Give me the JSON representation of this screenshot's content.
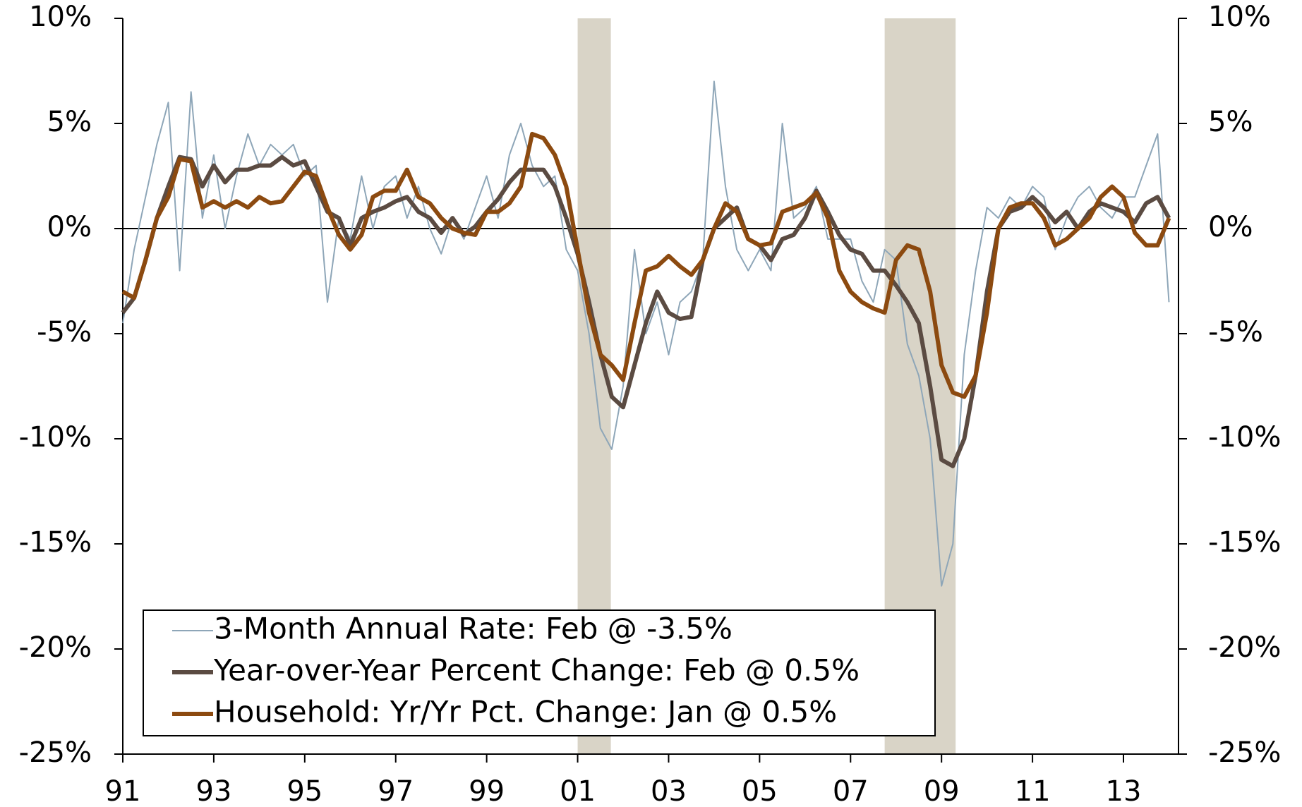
{
  "chart_data": {
    "type": "line",
    "x": [
      1991.0,
      1991.25,
      1991.5,
      1991.75,
      1992.0,
      1992.25,
      1992.5,
      1992.75,
      1993.0,
      1993.25,
      1993.5,
      1993.75,
      1994.0,
      1994.25,
      1994.5,
      1994.75,
      1995.0,
      1995.25,
      1995.5,
      1995.75,
      1996.0,
      1996.25,
      1996.5,
      1996.75,
      1997.0,
      1997.25,
      1997.5,
      1997.75,
      1998.0,
      1998.25,
      1998.5,
      1998.75,
      1999.0,
      1999.25,
      1999.5,
      1999.75,
      2000.0,
      2000.25,
      2000.5,
      2000.75,
      2001.0,
      2001.25,
      2001.5,
      2001.75,
      2002.0,
      2002.25,
      2002.5,
      2002.75,
      2003.0,
      2003.25,
      2003.5,
      2003.75,
      2004.0,
      2004.25,
      2004.5,
      2004.75,
      2005.0,
      2005.25,
      2005.5,
      2005.75,
      2006.0,
      2006.25,
      2006.5,
      2006.75,
      2007.0,
      2007.25,
      2007.5,
      2007.75,
      2008.0,
      2008.25,
      2008.5,
      2008.75,
      2009.0,
      2009.25,
      2009.5,
      2009.75,
      2010.0,
      2010.25,
      2010.5,
      2010.75,
      2011.0,
      2011.25,
      2011.5,
      2011.75,
      2012.0,
      2012.25,
      2012.5,
      2012.75,
      2013.0,
      2013.25,
      2013.5,
      2013.75,
      2014.0
    ],
    "series": [
      {
        "name": "3-Month Annual Rate: Feb @ -3.5%",
        "color": "#8ea6b8",
        "width": 2,
        "values": [
          -4.5,
          -1.0,
          1.5,
          4.0,
          6.0,
          -2.0,
          6.5,
          0.5,
          3.5,
          0.0,
          2.5,
          4.5,
          3.0,
          4.0,
          3.5,
          4.0,
          2.5,
          3.0,
          -3.5,
          0.5,
          -0.5,
          2.5,
          0.0,
          2.0,
          2.5,
          0.5,
          2.0,
          0.0,
          -1.2,
          0.5,
          -0.5,
          1.0,
          2.5,
          0.5,
          3.5,
          5.0,
          3.0,
          2.0,
          2.5,
          -1.0,
          -2.0,
          -5.0,
          -9.5,
          -10.5,
          -7.5,
          -1.0,
          -5.0,
          -3.5,
          -6.0,
          -3.5,
          -3.0,
          -1.5,
          7.0,
          2.0,
          -1.0,
          -2.0,
          -1.0,
          -2.0,
          5.0,
          0.5,
          1.0,
          2.0,
          -0.5,
          -0.5,
          -0.5,
          -2.5,
          -3.5,
          -1.0,
          -1.5,
          -5.5,
          -7.0,
          -10.0,
          -17.0,
          -15.0,
          -6.0,
          -2.0,
          1.0,
          0.5,
          1.5,
          1.0,
          2.0,
          1.5,
          -1.0,
          0.5,
          1.5,
          2.0,
          1.0,
          0.5,
          1.5,
          1.5,
          3.0,
          4.5,
          -3.5
        ]
      },
      {
        "name": "Year-over-Year Percent Change: Feb @ 0.5%",
        "color": "#5b4b42",
        "width": 6,
        "values": [
          -4.0,
          -3.3,
          -1.5,
          0.5,
          2.0,
          3.4,
          3.3,
          2.0,
          3.0,
          2.2,
          2.8,
          2.8,
          3.0,
          3.0,
          3.4,
          3.0,
          3.2,
          2.0,
          0.8,
          0.5,
          -0.8,
          0.5,
          0.8,
          1.0,
          1.3,
          1.5,
          0.8,
          0.5,
          -0.2,
          0.5,
          -0.3,
          0.1,
          0.8,
          1.4,
          2.2,
          2.8,
          2.8,
          2.8,
          2.0,
          0.5,
          -1.2,
          -3.5,
          -6.0,
          -8.0,
          -8.5,
          -6.5,
          -4.5,
          -3.0,
          -4.0,
          -4.3,
          -4.2,
          -1.5,
          0.0,
          0.5,
          1.0,
          -0.5,
          -0.8,
          -1.5,
          -0.5,
          -0.3,
          0.5,
          1.8,
          0.8,
          -0.3,
          -1.0,
          -1.2,
          -2.0,
          -2.0,
          -2.7,
          -3.5,
          -4.5,
          -7.5,
          -11.0,
          -11.3,
          -10.0,
          -7.0,
          -3.0,
          0.0,
          0.8,
          1.0,
          1.5,
          1.0,
          0.3,
          0.8,
          0.0,
          0.8,
          1.2,
          1.0,
          0.8,
          0.3,
          1.2,
          1.5,
          0.5
        ]
      },
      {
        "name": "Household: Yr/Yr Pct. Change: Jan @ 0.5%",
        "color": "#8c4a10",
        "width": 6,
        "values": [
          -3.0,
          -3.3,
          -1.5,
          0.5,
          1.5,
          3.3,
          3.2,
          1.0,
          1.3,
          1.0,
          1.3,
          1.0,
          1.5,
          1.2,
          1.3,
          2.0,
          2.7,
          2.5,
          1.0,
          -0.3,
          -1.0,
          -0.3,
          1.5,
          1.8,
          1.8,
          2.8,
          1.5,
          1.2,
          0.5,
          0.0,
          -0.2,
          -0.3,
          0.8,
          0.8,
          1.2,
          2.0,
          4.5,
          4.3,
          3.5,
          2.0,
          -1.0,
          -4.0,
          -6.0,
          -6.5,
          -7.2,
          -4.5,
          -2.0,
          -1.8,
          -1.3,
          -1.8,
          -2.2,
          -1.5,
          0.0,
          1.2,
          0.8,
          -0.5,
          -0.8,
          -0.7,
          0.8,
          1.0,
          1.2,
          1.7,
          0.5,
          -2.0,
          -3.0,
          -3.5,
          -3.8,
          -4.0,
          -1.5,
          -0.8,
          -1.0,
          -3.0,
          -6.5,
          -7.8,
          -8.0,
          -7.0,
          -4.0,
          0.0,
          1.0,
          1.2,
          1.2,
          0.5,
          -0.8,
          -0.5,
          0.0,
          0.5,
          1.5,
          2.0,
          1.5,
          -0.2,
          -0.8,
          -0.8,
          0.5
        ]
      }
    ],
    "recessions": [
      [
        2001.0,
        2001.73
      ],
      [
        2007.75,
        2009.31
      ]
    ],
    "xlim": [
      1991,
      2014.21
    ],
    "xticks": [
      {
        "value": 1991,
        "label": "91"
      },
      {
        "value": 1993,
        "label": "93"
      },
      {
        "value": 1995,
        "label": "95"
      },
      {
        "value": 1997,
        "label": "97"
      },
      {
        "value": 1999,
        "label": "99"
      },
      {
        "value": 2001,
        "label": "01"
      },
      {
        "value": 2003,
        "label": "03"
      },
      {
        "value": 2005,
        "label": "05"
      },
      {
        "value": 2007,
        "label": "07"
      },
      {
        "value": 2009,
        "label": "09"
      },
      {
        "value": 2011,
        "label": "11"
      },
      {
        "value": 2013,
        "label": "13"
      }
    ],
    "ylim": [
      -25,
      10
    ],
    "yticks": [
      {
        "value": 10,
        "label": "10%"
      },
      {
        "value": 5,
        "label": "5%"
      },
      {
        "value": 0,
        "label": "0%"
      },
      {
        "value": -5,
        "label": "-5%"
      },
      {
        "value": -10,
        "label": "-10%"
      },
      {
        "value": -15,
        "label": "-15%"
      },
      {
        "value": -20,
        "label": "-20%"
      },
      {
        "value": -25,
        "label": "-25%"
      }
    ],
    "y2lim": [
      -25,
      10
    ],
    "y2ticks": [
      {
        "value": 10,
        "label": "10%"
      },
      {
        "value": 5,
        "label": "5%"
      },
      {
        "value": 0,
        "label": "0%"
      },
      {
        "value": -5,
        "label": "-5%"
      },
      {
        "value": -10,
        "label": "-10%"
      },
      {
        "value": -15,
        "label": "-15%"
      },
      {
        "value": -20,
        "label": "-20%"
      },
      {
        "value": -25,
        "label": "-25%"
      }
    ],
    "legend": "lower-left"
  }
}
